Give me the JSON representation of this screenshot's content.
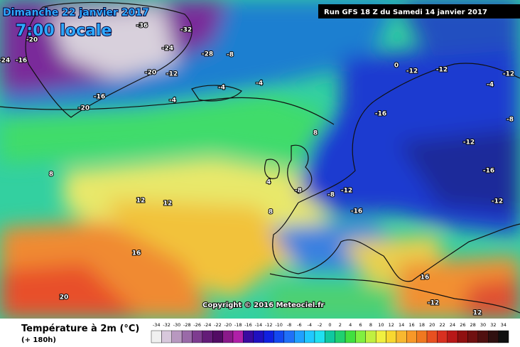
{
  "header": {
    "date": "Dimanche 22 janvier 2017",
    "time": "7:00 locale",
    "run": "Run GFS 18 Z du Samedi 14 janvier 2017"
  },
  "copyright": "Copyright © 2016 Meteociel.fr",
  "legend": {
    "title": "Température à 2m (°C)",
    "lead": "(+ 180h)",
    "scale": [
      -34,
      -32,
      -30,
      -28,
      -26,
      -24,
      -22,
      -20,
      -18,
      -16,
      -14,
      -12,
      -10,
      -8,
      -6,
      -4,
      -2,
      0,
      2,
      4,
      6,
      8,
      10,
      12,
      14,
      16,
      18,
      20,
      22,
      24,
      26,
      28,
      30,
      32,
      34
    ]
  },
  "map_labels": [
    -24,
    -16,
    -20,
    -36,
    -32,
    -28,
    -24,
    -20,
    -12,
    -8,
    -4,
    -16,
    -20,
    -4,
    -4,
    8,
    8,
    12,
    12,
    16,
    20,
    4,
    8,
    -8,
    -12,
    -16,
    -12,
    -16,
    -12,
    -16,
    -12,
    -8,
    16,
    12,
    -12,
    -4,
    -12,
    0,
    -12,
    -8
  ]
}
